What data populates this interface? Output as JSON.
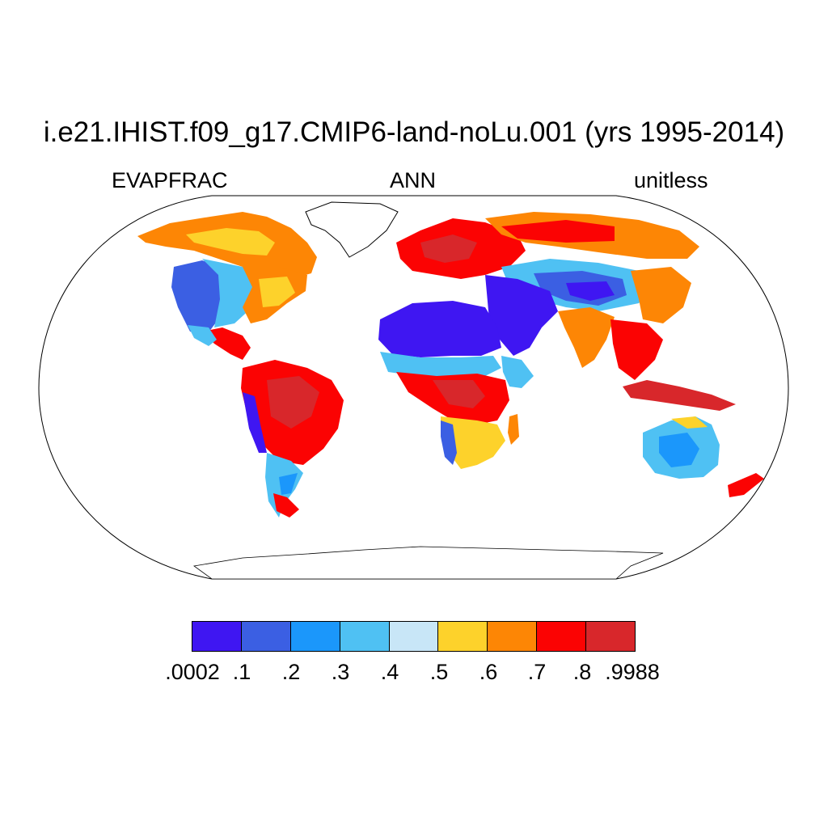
{
  "title": "i.e21.IHIST.f09_g17.CMIP6-land-noLu.001 (yrs 1995-2014)",
  "left_label": "EVAPFRAC",
  "center_label": "ANN",
  "right_label": "unitless",
  "colorbar": {
    "colors": [
      "#3f16f2",
      "#3b5fe3",
      "#1b97fb",
      "#4fc1f3",
      "#c8e6f7",
      "#fdd22b",
      "#fd8605",
      "#fb0303",
      "#d8272b"
    ],
    "tick_labels": [
      ".0002",
      ".1",
      ".2",
      ".3",
      ".4",
      ".5",
      ".6",
      ".7",
      ".8",
      ".9988"
    ]
  },
  "map": {
    "projection": "Robinson",
    "variable": "EVAPFRAC",
    "land_ocean_outline_color": "#000000"
  }
}
